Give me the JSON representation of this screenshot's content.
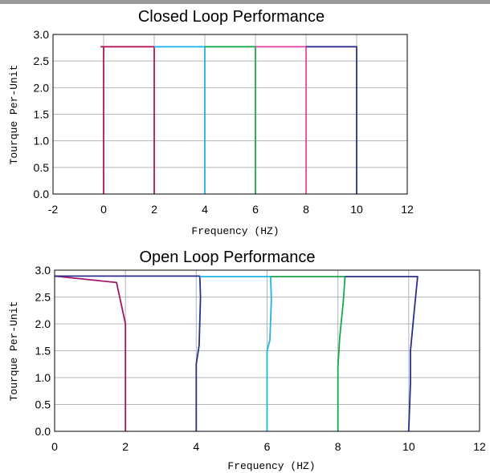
{
  "chart_data": [
    {
      "type": "line",
      "title": "Closed Loop Performance",
      "xlabel": "Frequency (HZ)",
      "ylabel": "Tourque Per-Unit",
      "xlim": [
        -2,
        12
      ],
      "ylim": [
        0,
        3
      ],
      "xticks": [
        -2,
        0,
        2,
        4,
        6,
        8,
        10,
        12
      ],
      "yticks": [
        "0.0",
        "0.5",
        "1.0",
        "1.5",
        "2.0",
        "2.5",
        "3.0"
      ],
      "grid": true,
      "series": [
        {
          "color": "#b0175a",
          "x": [
            0,
            0,
            -0.1,
            2,
            2
          ],
          "y": [
            0,
            2.77,
            2.77,
            2.77,
            0
          ]
        },
        {
          "color": "#1fb5e6",
          "x": [
            2,
            4,
            4
          ],
          "y": [
            2.77,
            2.77,
            0
          ]
        },
        {
          "color": "#18a84a",
          "x": [
            4,
            6,
            6
          ],
          "y": [
            2.77,
            2.77,
            0
          ]
        },
        {
          "color": "#e8499a",
          "x": [
            6,
            8,
            8
          ],
          "y": [
            2.77,
            2.77,
            0
          ]
        },
        {
          "color": "#2b2f8c",
          "x": [
            8,
            10,
            10
          ],
          "y": [
            2.77,
            2.77,
            0
          ]
        }
      ]
    },
    {
      "type": "line",
      "title": "Open Loop Performance",
      "xlabel": "Frequency (HZ)",
      "ylabel": "Tourque Per-Unit",
      "xlim": [
        0,
        12
      ],
      "ylim": [
        0,
        3
      ],
      "xticks": [
        0,
        2,
        4,
        6,
        8,
        10,
        12
      ],
      "yticks": [
        "0.0",
        "0.5",
        "1.0",
        "1.5",
        "2.0",
        "2.5",
        "3.0"
      ],
      "grid": true,
      "series": [
        {
          "color": "#a0176a",
          "x": [
            0,
            1.75,
            2,
            2
          ],
          "y": [
            2.89,
            2.77,
            2.0,
            0
          ]
        },
        {
          "color": "#2b2f8c",
          "x": [
            0,
            4.1,
            4.12,
            4.08,
            4.0,
            4.0
          ],
          "y": [
            2.89,
            2.89,
            2.5,
            1.6,
            1.25,
            0
          ]
        },
        {
          "color": "#1fb5e6",
          "x": [
            4.1,
            6.1,
            6.12,
            6.08,
            6.0,
            6.0
          ],
          "y": [
            2.88,
            2.88,
            2.45,
            1.7,
            1.5,
            0
          ]
        },
        {
          "color": "#18a84a",
          "x": [
            6.1,
            8.2,
            8.15,
            8.05,
            8.0,
            8.0
          ],
          "y": [
            2.88,
            2.88,
            2.4,
            1.75,
            1.2,
            0
          ]
        },
        {
          "color": "#2b2f8c",
          "x": [
            8.2,
            10.25,
            10.15,
            10.05,
            10.05,
            10.0
          ],
          "y": [
            2.88,
            2.88,
            2.2,
            1.5,
            0.9,
            0
          ]
        }
      ]
    }
  ]
}
